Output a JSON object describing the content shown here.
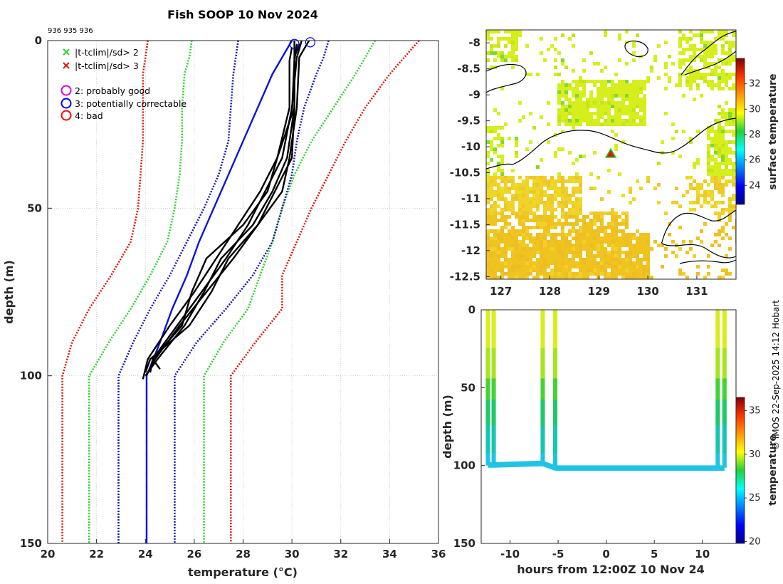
{
  "figure": {
    "title": "Fish SOOP 10 Nov 2024",
    "id_numbers": "936 935 936",
    "credit": "© IMOS 22-Sep-2025 14:12 Hobart",
    "colors": {
      "profile": "#000000",
      "climatology_mean": "#0a14d8",
      "sd2": "#2bd42b",
      "sd3": "#d81c0c",
      "sd1": "#1a1ab8",
      "flag2": "#e000e0",
      "flag3": "#0000ff",
      "flag4": "#ff0000"
    }
  },
  "chart_data": [
    {
      "type": "line",
      "name": "temperature-profile",
      "xlabel": "temperature (°C)",
      "ylabel": "depth (m)",
      "xlim": [
        20,
        36
      ],
      "ylim": [
        150,
        0
      ],
      "xticks": [
        "20",
        "22",
        "24",
        "26",
        "28",
        "30",
        "32",
        "34",
        "36"
      ],
      "yticks": [
        "0",
        "50",
        "100",
        "150"
      ],
      "grid": true,
      "legend": {
        "location": "top-left",
        "entries": [
          {
            "marker": "x",
            "color": "#2bd42b",
            "label": "|t-tclim|/sd> 2"
          },
          {
            "marker": "x",
            "color": "#d81c0c",
            "label": "|t-tclim|/sd> 3"
          },
          {
            "marker": "circle",
            "color": "#e000e0",
            "label": "2: probably good"
          },
          {
            "marker": "circle",
            "color": "#0000ff",
            "label": "3: potentially correctable"
          },
          {
            "marker": "circle",
            "color": "#ff0000",
            "label": "4: bad"
          }
        ]
      },
      "climatology": {
        "depth": [
          0,
          5,
          10,
          20,
          30,
          40,
          50,
          60,
          70,
          80,
          90,
          100,
          150
        ],
        "mean": [
          30.0,
          29.6,
          29.2,
          28.6,
          28.0,
          27.4,
          26.8,
          26.2,
          25.7,
          25.1,
          24.6,
          24.05,
          24.05
        ],
        "sd1_low": [
          27.8,
          27.7,
          27.6,
          27.5,
          27.4,
          27.0,
          26.4,
          25.7,
          25.0,
          24.2,
          23.5,
          22.9,
          22.9
        ],
        "sd1_high": [
          31.5,
          31.3,
          31.0,
          30.5,
          30.2,
          30.0,
          29.6,
          29.2,
          28.4,
          27.3,
          26.1,
          25.2,
          25.2
        ],
        "sd2_low": [
          25.9,
          25.8,
          25.6,
          25.5,
          25.5,
          25.4,
          25.2,
          24.9,
          24.2,
          23.4,
          22.5,
          21.7,
          21.7
        ],
        "sd2_high": [
          33.4,
          33.0,
          32.6,
          31.7,
          30.8,
          30.1,
          29.6,
          29.2,
          28.7,
          28.2,
          27.2,
          26.4,
          26.4
        ],
        "sd3_low": [
          24.1,
          24.0,
          23.9,
          23.9,
          23.9,
          23.8,
          23.7,
          23.4,
          22.6,
          21.7,
          21.0,
          20.6,
          20.6
        ],
        "sd3_high": [
          35.2,
          34.6,
          34.0,
          33.0,
          32.2,
          31.5,
          30.8,
          30.2,
          29.6,
          29.6,
          28.5,
          27.5,
          27.5
        ]
      },
      "profiles": [
        {
          "name": "profile-1",
          "depth": [
            0,
            5,
            20,
            35,
            45,
            55,
            65,
            75,
            85,
            95,
            99
          ],
          "temperature": [
            30.1,
            30.1,
            30.1,
            30.0,
            29.3,
            28.6,
            27.4,
            26.7,
            25.8,
            24.2,
            24.0
          ]
        },
        {
          "name": "profile-2",
          "depth": [
            0,
            5,
            20,
            35,
            45,
            55,
            65,
            75,
            85,
            95,
            99
          ],
          "temperature": [
            30.7,
            30.3,
            30.2,
            29.9,
            29.6,
            28.6,
            27.6,
            26.5,
            25.4,
            24.4,
            24.1
          ]
        },
        {
          "name": "profile-3",
          "depth": [
            1,
            6,
            22,
            35,
            45,
            55,
            65,
            75,
            85,
            95,
            101
          ],
          "temperature": [
            30.2,
            30.1,
            30.0,
            29.4,
            28.7,
            27.8,
            26.9,
            26.0,
            25.0,
            24.1,
            23.9
          ]
        },
        {
          "name": "profile-4",
          "depth": [
            0,
            5,
            20,
            35,
            45,
            55,
            65,
            75,
            85,
            95,
            98
          ],
          "temperature": [
            30.4,
            30.2,
            30.0,
            29.6,
            28.9,
            28.2,
            27.3,
            26.3,
            25.3,
            24.3,
            24.6
          ]
        },
        {
          "name": "profile-5",
          "depth": [
            2,
            6,
            20,
            35,
            45,
            55,
            65,
            75,
            85,
            95,
            99
          ],
          "temperature": [
            30.0,
            29.9,
            29.9,
            29.4,
            29.0,
            28.0,
            26.5,
            25.9,
            25.5,
            24.3,
            24.2
          ]
        },
        {
          "name": "profile-6",
          "depth": [
            1,
            5,
            20,
            35,
            45,
            55,
            65,
            75,
            85,
            95,
            100
          ],
          "temperature": [
            30.3,
            30.1,
            30.1,
            29.8,
            29.2,
            28.4,
            27.1,
            26.4,
            25.6,
            24.5,
            24.0
          ]
        }
      ],
      "flag_markers": [
        {
          "depth": 1,
          "temperature": 30.1,
          "flag": 3
        },
        {
          "depth": 0.5,
          "temperature": 30.75,
          "flag": 3
        }
      ]
    },
    {
      "type": "heatmap",
      "name": "sst-map",
      "colorbar_label": "surface temperature",
      "xlim": [
        126.7,
        131.8
      ],
      "ylim": [
        -12.55,
        -7.75
      ],
      "xticks": [
        "127",
        "128",
        "129",
        "130",
        "131"
      ],
      "yticks": [
        "-8",
        "-8.5",
        "-9",
        "-9.5",
        "-10",
        "-10.5",
        "-11",
        "-11.5",
        "-12",
        "-12.5"
      ],
      "colorbar_range": [
        22.5,
        34
      ],
      "colorbar_ticks": [
        "24",
        "26",
        "28",
        "30",
        "32"
      ],
      "station": {
        "lon": 129.2,
        "lat": -10.05,
        "marker": "triangle"
      }
    },
    {
      "type": "scatter",
      "name": "time-depth-section",
      "xlabel": "hours from 12:00Z 10 Nov 24",
      "ylabel": "depth (m)",
      "colorbar_label": "temperature",
      "xlim": [
        -13,
        13.5
      ],
      "ylim": [
        150,
        0
      ],
      "xticks": [
        "-10",
        "-5",
        "0",
        "5",
        "10"
      ],
      "yticks": [
        "0",
        "50",
        "100",
        "150"
      ],
      "colorbar_range": [
        19.8,
        36.5
      ],
      "colorbar_ticks": [
        "20",
        "25",
        "30",
        "35"
      ],
      "casts": [
        {
          "hour": -12.3,
          "bottom_depth": 99
        },
        {
          "hour": -11.7,
          "bottom_depth": 99
        },
        {
          "hour": -6.6,
          "bottom_depth": 98
        },
        {
          "hour": -5.3,
          "bottom_depth": 101
        },
        {
          "hour": 11.6,
          "bottom_depth": 101
        },
        {
          "hour": 12.3,
          "bottom_depth": 101
        }
      ]
    }
  ]
}
